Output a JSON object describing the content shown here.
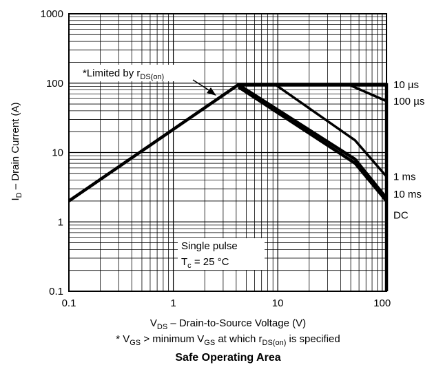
{
  "chart_data": {
    "type": "line",
    "title": "Safe Operating Area",
    "xlabel": {
      "main": "V",
      "sub": "DS",
      "rest": "  –  Drain-to-Source Voltage (V)"
    },
    "ylabel": {
      "main": "I",
      "sub": "D",
      "rest": "  –  Drain Current (A)"
    },
    "footnote": {
      "a": "* V",
      "a_sub": "GS",
      "b": " > minimum V",
      "b_sub": "GS",
      "c": " at which r",
      "c_sub": "DS(on)",
      "d": " is specified"
    },
    "x_scale": "log",
    "y_scale": "log",
    "xlim": [
      0.1,
      110
    ],
    "ylim": [
      0.1,
      1000
    ],
    "grid": true,
    "xticks": [
      {
        "v": 0.1,
        "label": "0.1"
      },
      {
        "v": 1,
        "label": "1"
      },
      {
        "v": 10,
        "label": "10"
      },
      {
        "v": 100,
        "label": "100"
      }
    ],
    "yticks": [
      {
        "v": 0.1,
        "label": "0.1"
      },
      {
        "v": 1,
        "label": "1"
      },
      {
        "v": 10,
        "label": "10"
      },
      {
        "v": 100,
        "label": "100"
      },
      {
        "v": 1000,
        "label": "1000"
      }
    ],
    "annotations": {
      "limited": {
        "text": "*Limited by r",
        "sub": "DS(on)"
      },
      "single_pulse": "Single pulse",
      "tc": {
        "main": "T",
        "sub": "c",
        "rest": " = 25 °C"
      }
    },
    "series": [
      {
        "name": "10 µs",
        "x": [
          0.1,
          4.2,
          110,
          110
        ],
        "y": [
          2,
          95,
          95,
          0.1
        ]
      },
      {
        "name": "100 µs",
        "x": [
          48,
          110
        ],
        "y": [
          95,
          55
        ]
      },
      {
        "name": "1 ms",
        "x": [
          9.5,
          55,
          110
        ],
        "y": [
          95,
          15,
          4.5
        ]
      },
      {
        "name": "10 ms",
        "x": [
          4.2,
          55,
          110
        ],
        "y": [
          95,
          8,
          2.2
        ]
      },
      {
        "name": "DC",
        "x": [
          4.2,
          55,
          110
        ],
        "y": [
          88,
          7,
          2
        ]
      }
    ],
    "series_labels": [
      {
        "name": "10 µs",
        "y": 95
      },
      {
        "name": "100 µs",
        "y": 55
      },
      {
        "name": "1 ms",
        "y": 4.5
      },
      {
        "name": "10 ms",
        "y": 2.5
      },
      {
        "name": "DC",
        "y": 1.25
      }
    ]
  }
}
